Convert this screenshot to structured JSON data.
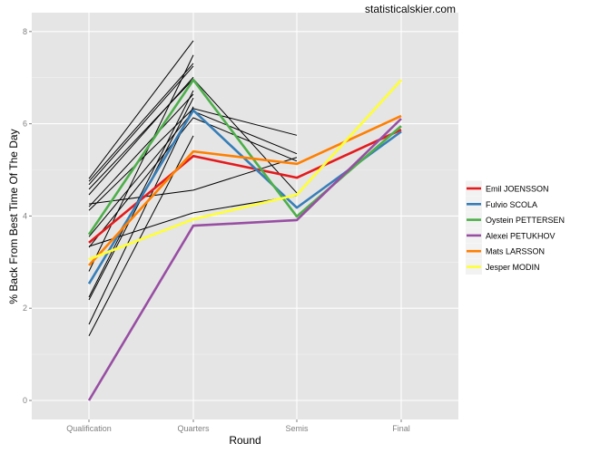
{
  "chart_data": {
    "type": "line",
    "watermark": "statisticalskier.com",
    "xlabel": "Round",
    "ylabel": "% Back From Best Time Of The Day",
    "categories": [
      "Qualification",
      "Quarters",
      "Semis",
      "Final"
    ],
    "ylim": [
      -0.4,
      8.4
    ],
    "yticks": [
      0,
      2,
      4,
      6,
      8
    ],
    "grid": true,
    "legend_position": "right",
    "highlighted": [
      {
        "name": "Emil JOENSSON",
        "color": "#e41a1c",
        "values": [
          3.42,
          5.3,
          4.83,
          5.87
        ]
      },
      {
        "name": "Fulvio SCOLA",
        "color": "#377eb8",
        "values": [
          2.53,
          6.29,
          4.18,
          5.83
        ]
      },
      {
        "name": "Oystein PETTERSEN",
        "color": "#4daf4a",
        "values": [
          3.6,
          6.95,
          3.99,
          5.95
        ]
      },
      {
        "name": "Alexei PETUKHOV",
        "color": "#984ea3",
        "values": [
          0.0,
          3.79,
          3.91,
          6.11
        ]
      },
      {
        "name": "Mats LARSSON",
        "color": "#ff7f00",
        "values": [
          2.93,
          5.4,
          5.13,
          6.17
        ]
      },
      {
        "name": "Jesper MODIN",
        "color": "#ffff33",
        "values": [
          3.06,
          3.93,
          4.46,
          6.95
        ]
      }
    ],
    "others": [
      {
        "values": [
          4.81,
          7.8
        ]
      },
      {
        "values": [
          4.75,
          7.31
        ]
      },
      {
        "values": [
          4.68,
          7.25
        ]
      },
      {
        "values": [
          4.58,
          6.97,
          4.5
        ]
      },
      {
        "values": [
          4.46,
          7.01
        ]
      },
      {
        "values": [
          4.26,
          4.56,
          5.27
        ]
      },
      {
        "values": [
          4.2,
          6.64
        ]
      },
      {
        "values": [
          4.12,
          6.33,
          5.75
        ]
      },
      {
        "values": [
          3.55,
          6.27,
          5.35
        ]
      },
      {
        "values": [
          3.34,
          4.07,
          4.44
        ]
      },
      {
        "values": [
          3.32,
          6.13,
          5.19
        ]
      },
      {
        "values": [
          2.8,
          7.49
        ]
      },
      {
        "values": [
          2.24,
          6.72
        ]
      },
      {
        "values": [
          2.18,
          6.56
        ]
      },
      {
        "values": [
          1.65,
          6.37
        ]
      },
      {
        "values": [
          1.4,
          5.74
        ]
      }
    ]
  }
}
